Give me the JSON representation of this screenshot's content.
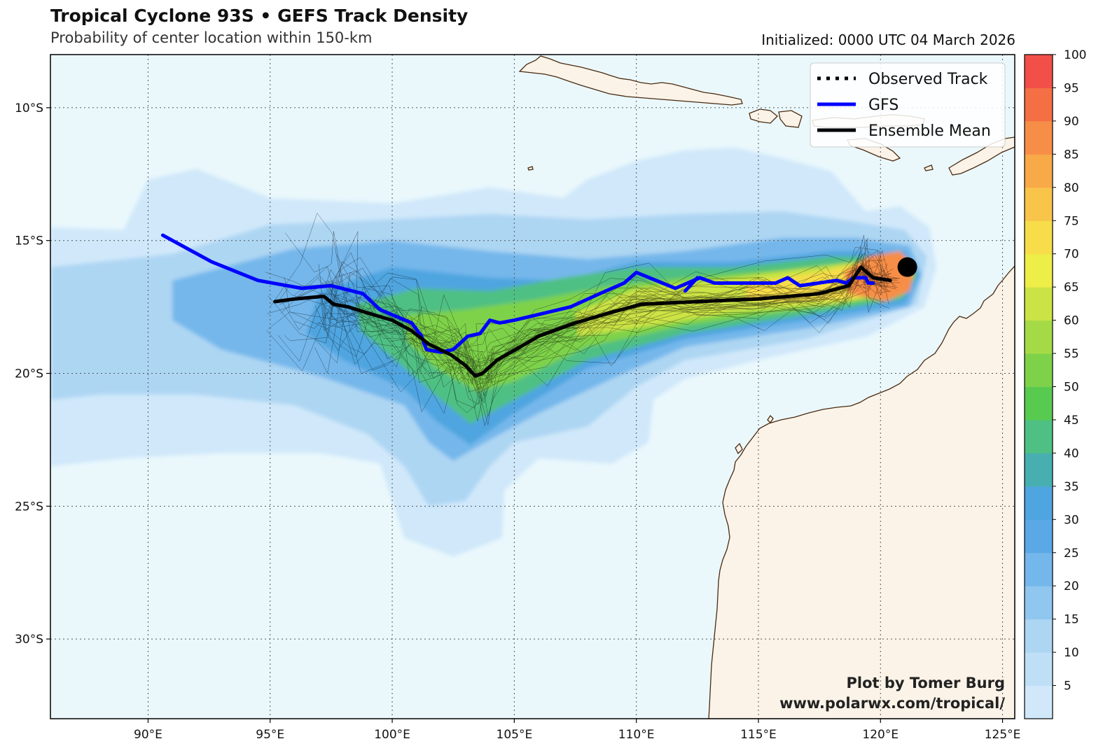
{
  "header": {
    "title": "Tropical Cyclone 93S • GEFS Track Density",
    "subtitle": "Probability of center location within 150-km",
    "initialized": "Initialized: 0000 UTC 04 March 2026"
  },
  "map": {
    "lon_range": [
      86,
      125.5
    ],
    "lat_range": [
      -8,
      -33
    ],
    "lon_ticks": [
      {
        "lon": 90,
        "label": "90°E"
      },
      {
        "lon": 95,
        "label": "95°E"
      },
      {
        "lon": 100,
        "label": "100°E"
      },
      {
        "lon": 105,
        "label": "105°E"
      },
      {
        "lon": 110,
        "label": "110°E"
      },
      {
        "lon": 115,
        "label": "115°E"
      },
      {
        "lon": 120,
        "label": "120°E"
      },
      {
        "lon": 125,
        "label": "125°E"
      }
    ],
    "lat_ticks": [
      {
        "lat": -10,
        "label": "10°S"
      },
      {
        "lat": -15,
        "label": "15°S"
      },
      {
        "lat": -20,
        "label": "20°S"
      },
      {
        "lat": -25,
        "label": "25°S"
      },
      {
        "lat": -30,
        "label": "30°S"
      }
    ],
    "colors": {
      "ocean": "#eaf8fc",
      "land": "#fbf3e8",
      "coast": "#4a2a10",
      "gfs": "#0000ff",
      "mean": "#000000"
    },
    "current_position": {
      "lon": 121.1,
      "lat": -16.0
    }
  },
  "chart_data": {
    "type": "heatmap",
    "title": "Tropical Cyclone 93S • GEFS Track Density",
    "variable": "Probability of center location within 150-km (%)",
    "density_bands": [
      {
        "level": 5,
        "points": [
          [
            86,
            -14.5
          ],
          [
            89,
            -14.6
          ],
          [
            90,
            -12.7
          ],
          [
            92,
            -12.3
          ],
          [
            95,
            -13.4
          ],
          [
            100,
            -13.6
          ],
          [
            104,
            -13.0
          ],
          [
            107,
            -13.4
          ],
          [
            108,
            -12.7
          ],
          [
            110,
            -12.0
          ],
          [
            112,
            -11.6
          ],
          [
            114,
            -11.5
          ],
          [
            116,
            -11.9
          ],
          [
            118,
            -12.4
          ],
          [
            119.4,
            -13.9
          ],
          [
            120.8,
            -13.7
          ],
          [
            122,
            -14.5
          ],
          [
            122.3,
            -16.0
          ],
          [
            121.8,
            -17.5
          ],
          [
            119.5,
            -18.6
          ],
          [
            115,
            -19.5
          ],
          [
            112,
            -20.2
          ],
          [
            110.7,
            -21.0
          ],
          [
            110.5,
            -22.6
          ],
          [
            109,
            -23.4
          ],
          [
            106,
            -23.2
          ],
          [
            104.6,
            -24.4
          ],
          [
            104.5,
            -26.2
          ],
          [
            102.5,
            -26.9
          ],
          [
            100.5,
            -26.2
          ],
          [
            99.5,
            -23.4
          ],
          [
            97,
            -23.0
          ],
          [
            93,
            -23.0
          ],
          [
            89,
            -23.2
          ],
          [
            86,
            -23.5
          ]
        ]
      },
      {
        "level": 15,
        "points": [
          [
            86,
            -16.0
          ],
          [
            91,
            -15.5
          ],
          [
            95,
            -14.4
          ],
          [
            100,
            -14.2
          ],
          [
            104,
            -14.0
          ],
          [
            108,
            -14.2
          ],
          [
            112,
            -14.0
          ],
          [
            116,
            -13.9
          ],
          [
            119,
            -14.3
          ],
          [
            121,
            -14.6
          ],
          [
            121.9,
            -15.6
          ],
          [
            121.5,
            -17.4
          ],
          [
            117,
            -18.7
          ],
          [
            112,
            -19.5
          ],
          [
            110,
            -20.5
          ],
          [
            108,
            -22.0
          ],
          [
            105,
            -22.6
          ],
          [
            104,
            -23.5
          ],
          [
            103,
            -24.8
          ],
          [
            101.5,
            -25.0
          ],
          [
            100.5,
            -23.5
          ],
          [
            99,
            -22.3
          ],
          [
            96,
            -21.2
          ],
          [
            92,
            -20.8
          ],
          [
            88,
            -20.8
          ],
          [
            86,
            -21.0
          ]
        ]
      },
      {
        "level": 25,
        "points": [
          [
            91,
            -16.5
          ],
          [
            96,
            -15.3
          ],
          [
            100,
            -15.0
          ],
          [
            104,
            -15.4
          ],
          [
            108,
            -15.7
          ],
          [
            112,
            -15.4
          ],
          [
            116,
            -14.9
          ],
          [
            119,
            -14.9
          ],
          [
            121.2,
            -15.2
          ],
          [
            121.7,
            -16.3
          ],
          [
            121.2,
            -17.5
          ],
          [
            117,
            -18.3
          ],
          [
            112,
            -19.0
          ],
          [
            109,
            -20.2
          ],
          [
            106,
            -21.5
          ],
          [
            104,
            -22.5
          ],
          [
            102.5,
            -23.3
          ],
          [
            101.5,
            -22.6
          ],
          [
            100.5,
            -21.2
          ],
          [
            97,
            -20.1
          ],
          [
            93,
            -19.1
          ],
          [
            91,
            -18.0
          ]
        ]
      },
      {
        "level": 35,
        "points": [
          [
            97,
            -16.9
          ],
          [
            100,
            -16.0
          ],
          [
            104,
            -16.4
          ],
          [
            107,
            -16.5
          ],
          [
            110,
            -15.8
          ],
          [
            114,
            -15.8
          ],
          [
            118,
            -15.4
          ],
          [
            121,
            -15.4
          ],
          [
            121.6,
            -16.3
          ],
          [
            121,
            -17.4
          ],
          [
            117,
            -18.0
          ],
          [
            112,
            -18.7
          ],
          [
            108,
            -19.8
          ],
          [
            105,
            -21.5
          ],
          [
            103.2,
            -22.7
          ],
          [
            101.8,
            -21.8
          ],
          [
            100.5,
            -20.6
          ],
          [
            98,
            -19.5
          ],
          [
            96.5,
            -18.5
          ]
        ]
      },
      {
        "level": 45,
        "points": [
          [
            98.5,
            -17.4
          ],
          [
            101,
            -16.8
          ],
          [
            104,
            -16.9
          ],
          [
            107,
            -16.4
          ],
          [
            110,
            -16.0
          ],
          [
            114,
            -16.0
          ],
          [
            118,
            -15.6
          ],
          [
            121,
            -15.6
          ],
          [
            121.5,
            -16.3
          ],
          [
            120.9,
            -17.2
          ],
          [
            117,
            -17.8
          ],
          [
            112,
            -18.5
          ],
          [
            108,
            -19.5
          ],
          [
            105,
            -21.0
          ],
          [
            103.2,
            -21.9
          ],
          [
            102,
            -21.0
          ],
          [
            100.5,
            -19.8
          ],
          [
            98.7,
            -18.4
          ]
        ]
      },
      {
        "level": 55,
        "points": [
          [
            100.5,
            -17.8
          ],
          [
            103,
            -17.6
          ],
          [
            106,
            -17.2
          ],
          [
            109,
            -16.7
          ],
          [
            112,
            -16.4
          ],
          [
            116,
            -16.1
          ],
          [
            119,
            -15.8
          ],
          [
            121,
            -15.8
          ],
          [
            121.4,
            -16.4
          ],
          [
            120.7,
            -17.1
          ],
          [
            117,
            -17.6
          ],
          [
            112,
            -18.2
          ],
          [
            108,
            -19.0
          ],
          [
            105,
            -20.3
          ],
          [
            103.5,
            -20.7
          ],
          [
            101.8,
            -19.8
          ],
          [
            100.6,
            -18.8
          ]
        ]
      },
      {
        "level": 65,
        "points": [
          [
            107.5,
            -17.7
          ],
          [
            110,
            -16.8
          ],
          [
            114,
            -16.4
          ],
          [
            117.5,
            -16.0
          ],
          [
            120,
            -15.7
          ],
          [
            121.3,
            -16.0
          ],
          [
            121.2,
            -16.8
          ],
          [
            118,
            -17.4
          ],
          [
            114,
            -17.7
          ],
          [
            110,
            -18.3
          ],
          [
            107.6,
            -18.6
          ]
        ]
      },
      {
        "level": 75,
        "points": [
          [
            114.5,
            -16.6
          ],
          [
            117.5,
            -16.2
          ],
          [
            119.5,
            -15.8
          ],
          [
            121.2,
            -15.9
          ],
          [
            121.2,
            -16.8
          ],
          [
            119,
            -17.2
          ],
          [
            116,
            -17.3
          ],
          [
            114.5,
            -17.2
          ]
        ]
      },
      {
        "level": 90,
        "points": [
          [
            118.5,
            -16.2
          ],
          [
            119.5,
            -15.6
          ],
          [
            120.8,
            -15.4
          ],
          [
            121.4,
            -16.0
          ],
          [
            121.2,
            -16.9
          ],
          [
            120.2,
            -17.3
          ],
          [
            118.7,
            -17.0
          ]
        ]
      }
    ],
    "colorbar": {
      "min": 0,
      "max": 100,
      "step": 5,
      "tick_labels": [
        "5",
        "10",
        "15",
        "20",
        "25",
        "30",
        "35",
        "40",
        "45",
        "50",
        "55",
        "60",
        "65",
        "70",
        "75",
        "80",
        "85",
        "90",
        "95",
        "100"
      ],
      "colors": [
        "#d0e8fa",
        "#bfdff6",
        "#add6f3",
        "#8fc7ef",
        "#74b7eb",
        "#5aa8e6",
        "#4fa5e0",
        "#48afb0",
        "#4fc083",
        "#58ca50",
        "#7ed24a",
        "#a5da47",
        "#cce345",
        "#eeee48",
        "#f7dd4a",
        "#f8c44a",
        "#f8a948",
        "#f78e47",
        "#f56f45",
        "#f24f48"
      ]
    },
    "series": [
      {
        "name": "GFS",
        "color": "#0000ff",
        "points": [
          [
            90.6,
            -14.8
          ],
          [
            92.6,
            -15.8
          ],
          [
            94.5,
            -16.5
          ],
          [
            96.3,
            -16.8
          ],
          [
            97.5,
            -16.7
          ],
          [
            98.8,
            -17.0
          ],
          [
            99.5,
            -17.6
          ],
          [
            100.8,
            -18.1
          ],
          [
            101.2,
            -18.6
          ],
          [
            101.4,
            -19.1
          ],
          [
            102,
            -19.2
          ],
          [
            102.5,
            -19.1
          ],
          [
            103.1,
            -18.6
          ],
          [
            103.6,
            -18.5
          ],
          [
            104,
            -18.0
          ],
          [
            104.4,
            -18.1
          ],
          [
            105,
            -18.0
          ],
          [
            107.3,
            -17.5
          ],
          [
            108.5,
            -17.0
          ],
          [
            109.5,
            -16.6
          ],
          [
            110,
            -16.2
          ],
          [
            111.6,
            -16.8
          ],
          [
            112.6,
            -16.4
          ],
          [
            113.2,
            -16.6
          ],
          [
            114,
            -16.6
          ],
          [
            115.7,
            -16.6
          ],
          [
            116.2,
            -16.4
          ],
          [
            116.7,
            -16.7
          ],
          [
            118.2,
            -16.5
          ],
          [
            118.6,
            -16.6
          ],
          [
            118.9,
            -16.4
          ],
          [
            119.4,
            -16.4
          ],
          [
            119.5,
            -16.6
          ],
          [
            119.7,
            -16.6
          ]
        ]
      },
      {
        "name": "GFS-branch",
        "color": "#0000ff",
        "points": [
          [
            112,
            -16.9
          ],
          [
            112.3,
            -16.6
          ],
          [
            112.5,
            -16.4
          ]
        ]
      },
      {
        "name": "Ensemble Mean",
        "color": "#000000",
        "points": [
          [
            95.2,
            -17.3
          ],
          [
            96,
            -17.2
          ],
          [
            97.2,
            -17.1
          ],
          [
            97.6,
            -17.4
          ],
          [
            98.2,
            -17.5
          ],
          [
            98.9,
            -17.7
          ],
          [
            100,
            -18.0
          ],
          [
            100.8,
            -18.4
          ],
          [
            101.5,
            -18.9
          ],
          [
            102.4,
            -19.3
          ],
          [
            103,
            -19.7
          ],
          [
            103.4,
            -20.1
          ],
          [
            103.7,
            -20.0
          ],
          [
            104.3,
            -19.5
          ],
          [
            106,
            -18.6
          ],
          [
            107.5,
            -18.1
          ],
          [
            109,
            -17.7
          ],
          [
            110.2,
            -17.4
          ],
          [
            112.5,
            -17.3
          ],
          [
            115,
            -17.2
          ],
          [
            117.5,
            -17.0
          ],
          [
            118.7,
            -16.7
          ],
          [
            119.2,
            -16.0
          ],
          [
            119.7,
            -16.4
          ],
          [
            120.4,
            -16.5
          ]
        ]
      }
    ],
    "legend": [
      "Observed Track",
      "GFS",
      "Ensemble Mean"
    ],
    "legend_position": "top-right"
  },
  "credits": {
    "line1": "Plot by Tomer Burg",
    "line2": "www.polarwx.com/tropical/"
  }
}
